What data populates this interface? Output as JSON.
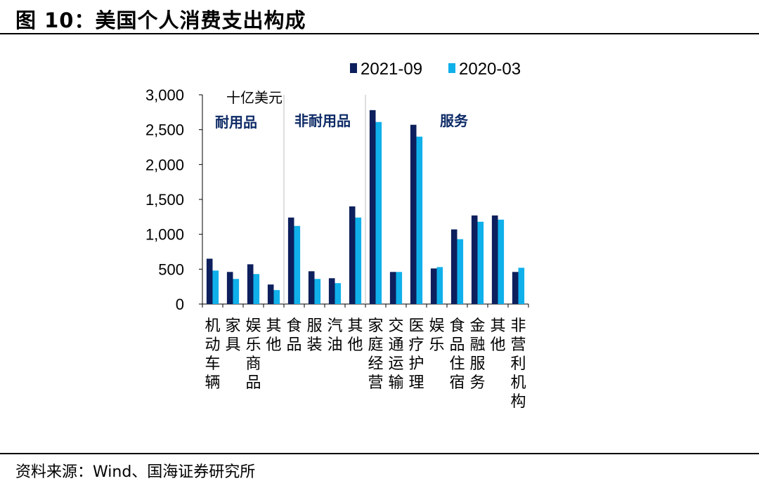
{
  "header": {
    "title": "图 10：美国个人消费支出构成"
  },
  "footer": {
    "source": "资料来源：Wind、国海证券研究所"
  },
  "colors": {
    "series_2021": "#0d1f5c",
    "series_2020": "#10b0ea",
    "group_label": "#0d2a66"
  },
  "chart_data": {
    "type": "bar",
    "unit_label": "十亿美元",
    "group_labels": [
      "耐用品",
      "非耐用品",
      "服务"
    ],
    "categories": [
      "机动车辆",
      "家具",
      "娱乐商品",
      "其他",
      "食品",
      "服装",
      "汽油",
      "其他",
      "家庭经营",
      "交通运输",
      "医疗护理",
      "娱乐",
      "食品住宿",
      "金融服务",
      "其他",
      "非营利机构"
    ],
    "series": [
      {
        "name": "2021-09",
        "values": [
          650,
          460,
          570,
          280,
          1240,
          470,
          370,
          1400,
          2780,
          460,
          2570,
          510,
          1070,
          1270,
          1270,
          460
        ]
      },
      {
        "name": "2020-03",
        "values": [
          480,
          360,
          430,
          200,
          1120,
          360,
          300,
          1240,
          2610,
          460,
          2400,
          530,
          930,
          1180,
          1210,
          520
        ]
      }
    ],
    "yticks": [
      "0",
      "500",
      "1,000",
      "1,500",
      "2,000",
      "2,500",
      "3,000"
    ],
    "ylim": [
      0,
      3000
    ],
    "legend_position": "top-right",
    "grid": false
  }
}
